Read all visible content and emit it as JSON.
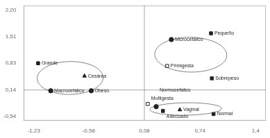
{
  "chart_data": {
    "type": "scatter",
    "color": "#222222",
    "points": [
      {
        "label": "Grande",
        "x": -1.18,
        "y": 0.83,
        "marker": "square",
        "filled": true
      },
      {
        "label": "Macrocefálico",
        "x": -1.03,
        "y": 0.12,
        "marker": "circle",
        "filled": true
      },
      {
        "label": "Cesárea",
        "x": -0.63,
        "y": 0.5,
        "marker": "triangle",
        "filled": true
      },
      {
        "label": "Obeso",
        "x": -0.55,
        "y": 0.12,
        "marker": "circle",
        "filled": true
      },
      {
        "label": "Microcefálico",
        "x": 0.4,
        "y": 1.44,
        "marker": "circle",
        "filled": true
      },
      {
        "label": "Pequeño",
        "x": 0.87,
        "y": 1.6,
        "marker": "square",
        "filled": true
      },
      {
        "label": "Primigesta",
        "x": 0.35,
        "y": 0.76,
        "marker": "square",
        "filled": false
      },
      {
        "label": "Sobrepeso",
        "x": 0.88,
        "y": 0.44,
        "marker": "square",
        "filled": true
      },
      {
        "label": "Multigesta",
        "x": 0.12,
        "y": -0.22,
        "marker": "square",
        "filled": false
      },
      {
        "label": "Normocefalico",
        "x": 0.22,
        "y": -0.29,
        "marker": "circle",
        "filled": true
      },
      {
        "label": "Adecuado",
        "x": 0.3,
        "y": -0.4,
        "marker": "square",
        "filled": true
      },
      {
        "label": "Vaginal",
        "x": 0.5,
        "y": -0.37,
        "marker": "triangle",
        "filled": true
      },
      {
        "label": "Normal",
        "x": 0.9,
        "y": -0.48,
        "marker": "square",
        "filled": true
      }
    ],
    "ellipses": [
      {
        "cx": -0.8,
        "cy": 0.45,
        "width": 0.78,
        "height": 0.85,
        "angle": -8
      },
      {
        "cx": 0.63,
        "cy": 1.05,
        "width": 0.85,
        "height": 0.9,
        "angle": 15
      },
      {
        "cx": 0.57,
        "cy": -0.35,
        "width": 0.85,
        "height": 0.32,
        "angle": 2
      }
    ],
    "reference_lines": {
      "x": 0.08,
      "y": 0.14
    },
    "xlim": [
      -1.35,
      1.52
    ],
    "ylim": [
      -0.64,
      2.32
    ],
    "xticks": [
      {
        "value": -1.23,
        "label": "-1,23"
      },
      {
        "value": -0.58,
        "label": "-0,58"
      },
      {
        "value": 0.08,
        "label": "0,08"
      },
      {
        "value": 0.74,
        "label": "0,74"
      },
      {
        "value": 1.4,
        "label": "1,4"
      }
    ],
    "yticks": [
      {
        "value": -0.54,
        "label": "-0,54"
      },
      {
        "value": 0.14,
        "label": "0,14"
      },
      {
        "value": 0.83,
        "label": "0,83"
      },
      {
        "value": 1.51,
        "label": "1,51"
      },
      {
        "value": 2.2,
        "label": "2,20"
      }
    ],
    "grid": false
  }
}
